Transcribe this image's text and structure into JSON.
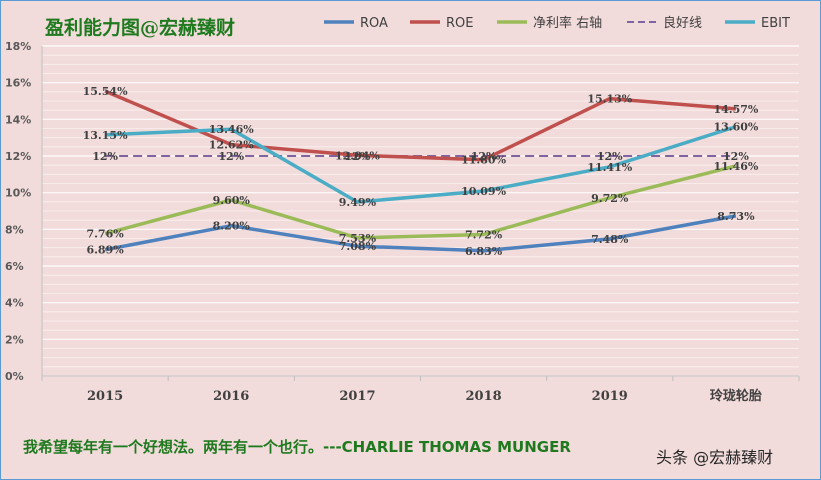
{
  "chart_data": {
    "type": "line",
    "title": "盈利能力图@宏赫臻财",
    "categories": [
      "2015",
      "2016",
      "2017",
      "2018",
      "2019",
      "玲珑轮胎"
    ],
    "ylim": [
      0,
      18
    ],
    "yticks": [
      "0%",
      "2%",
      "4%",
      "6%",
      "8%",
      "10%",
      "12%",
      "14%",
      "16%",
      "18%"
    ],
    "grid": true,
    "legend_position": "top",
    "series": [
      {
        "name": "ROA",
        "color": "#4f81bd",
        "dashed": false,
        "values": [
          6.89,
          8.2,
          7.08,
          6.83,
          7.48,
          8.73
        ],
        "labels": [
          "6.89%",
          "8.20%",
          "7.08%",
          "6.83%",
          "7.48%",
          "8.73%"
        ]
      },
      {
        "name": "ROE",
        "color": "#c0504d",
        "dashed": false,
        "values": [
          15.54,
          12.62,
          12.04,
          11.8,
          15.13,
          14.57
        ],
        "labels": [
          "15.54%",
          "12.62%",
          "12.04%",
          "11.80%",
          "15.13%",
          "14.57%"
        ]
      },
      {
        "name": "净利率 右轴",
        "color": "#9bbb59",
        "dashed": false,
        "values": [
          7.76,
          9.6,
          7.53,
          7.72,
          9.72,
          11.46
        ],
        "labels": [
          "7.76%",
          "9.60%",
          "7.53%",
          "7.72%",
          "9.72%",
          "11.46%"
        ]
      },
      {
        "name": "良好线",
        "color": "#8064a2",
        "dashed": true,
        "values": [
          12,
          12,
          12,
          12,
          12,
          12
        ],
        "labels": [
          "12%",
          "12%",
          "12%",
          "12%",
          "12%",
          "12%"
        ]
      },
      {
        "name": "EBIT",
        "color": "#4bacc6",
        "dashed": false,
        "values": [
          13.15,
          13.46,
          9.49,
          10.09,
          11.41,
          13.6
        ],
        "labels": [
          "13.15%",
          "13.46%",
          "9.49%",
          "10.09%",
          "11.41%",
          "13.60%"
        ]
      }
    ]
  },
  "footer": {
    "quote": "我希望每年有一个好想法。两年有一个也行。---CHARLIE THOMAS MUNGER",
    "watermark": "头条 @宏赫臻财"
  }
}
